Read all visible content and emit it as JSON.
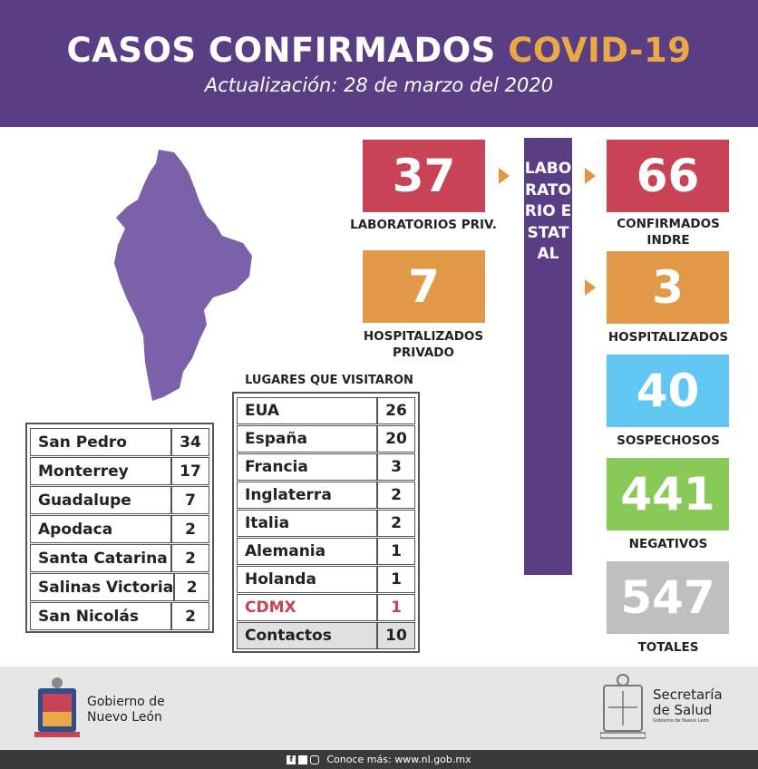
{
  "header": {
    "title_main": "CASOS CONFIRMADOS",
    "title_highlight": "COVID-19",
    "subtitle": "Actualización: 28 de marzo del 2020"
  },
  "stats": {
    "lab_priv": {
      "value": "37",
      "label": "LABORATORIOS PRIV."
    },
    "hosp_priv": {
      "value": "7",
      "label_line1": "HOSPITALIZADOS",
      "label_line2": "PRIVADO"
    },
    "confirmados": {
      "value": "66",
      "label_line1": "CONFIRMADOS",
      "label_line2": "INDRE"
    },
    "hospitalizados": {
      "value": "3",
      "label": "HOSPITALIZADOS"
    },
    "sospechosos": {
      "value": "40",
      "label": "SOSPECHOSOS"
    },
    "negativos": {
      "value": "441",
      "label": "NEGATIVOS"
    },
    "totales": {
      "value": "547",
      "label": "TOTALES"
    }
  },
  "vertical_label": "LABORATORIO ESTATAL",
  "municipios": [
    {
      "name": "San Pedro",
      "count": "34"
    },
    {
      "name": "Monterrey",
      "count": "17"
    },
    {
      "name": "Guadalupe",
      "count": "7"
    },
    {
      "name": "Apodaca",
      "count": "2"
    },
    {
      "name": "Santa Catarina",
      "count": "2"
    },
    {
      "name": "Salinas Victoria",
      "count": "2"
    },
    {
      "name": "San Nicolás",
      "count": "2"
    }
  ],
  "lugares": {
    "heading": "LUGARES QUE VISITARON",
    "rows": [
      {
        "name": "EUA",
        "count": "26"
      },
      {
        "name": "España",
        "count": "20"
      },
      {
        "name": "Francia",
        "count": "3"
      },
      {
        "name": "Inglaterra",
        "count": "2"
      },
      {
        "name": "Italia",
        "count": "2"
      },
      {
        "name": "Alemania",
        "count": "1"
      },
      {
        "name": "Holanda",
        "count": "1"
      },
      {
        "name": "CDMX",
        "count": "1"
      },
      {
        "name": "Contactos",
        "count": "10"
      }
    ]
  },
  "footer": {
    "gob_line1": "Gobierno de",
    "gob_line2": "Nuevo León",
    "salud_line1": "Secretaría",
    "salud_line2": "de Salud",
    "salud_line3": "Gobierno de Nuevo León",
    "bottom_text": "Conoce más: www.nl.gob.mx"
  },
  "colors": {
    "purple": "#5a3e84",
    "red": "#c94356",
    "orange": "#e39a48",
    "blue": "#62c6f2",
    "green": "#88c957",
    "grey": "#bfbfbf",
    "cdmx_red": "#c94356"
  }
}
